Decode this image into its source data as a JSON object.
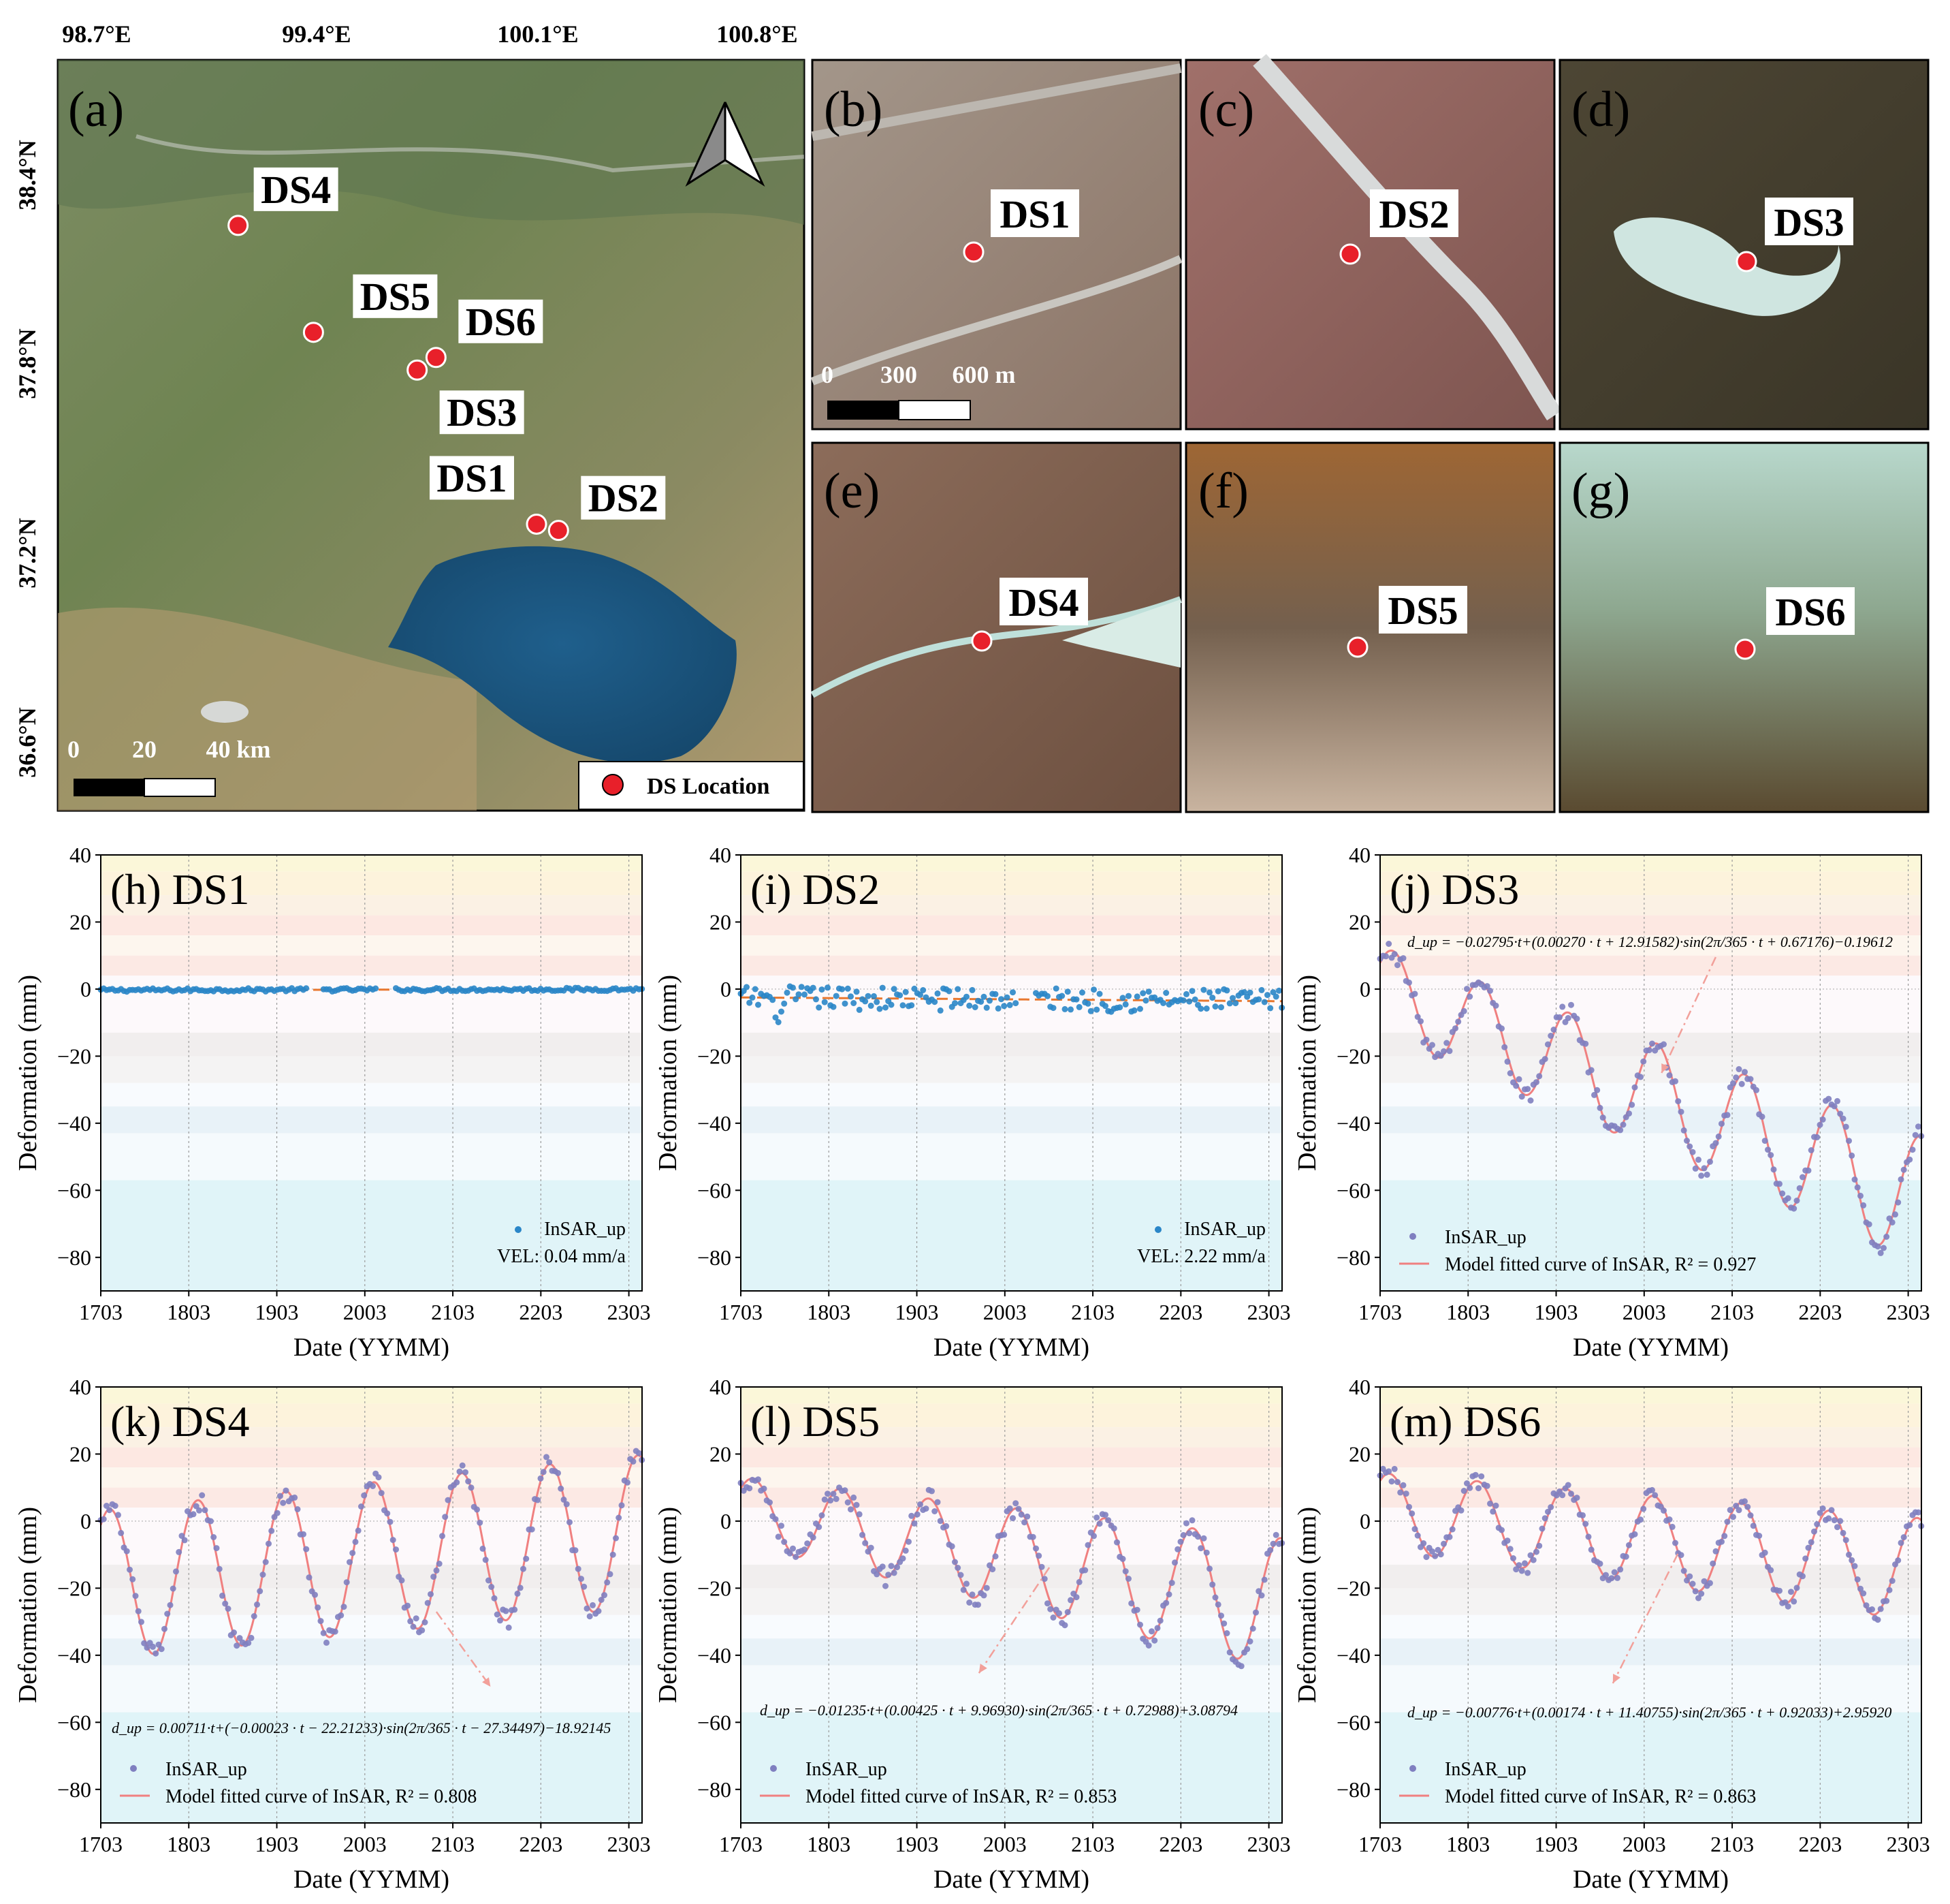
{
  "map": {
    "panel_label": "(a)",
    "lon_ticks": [
      "98.7°E",
      "99.4°E",
      "100.1°E",
      "100.8°E"
    ],
    "lat_ticks": [
      "38.4°N",
      "37.8°N",
      "37.2°N",
      "36.6°N"
    ],
    "scale_labels": [
      "0",
      "20",
      "40 km"
    ],
    "legend_label": "DS Location",
    "marker_color": "#e8202a",
    "sites": [
      {
        "name": "DS4",
        "lon": 99.15,
        "lat": 38.24
      },
      {
        "name": "DS5",
        "lon": 99.39,
        "lat": 37.9
      },
      {
        "name": "DS6",
        "lon": 99.78,
        "lat": 37.82
      },
      {
        "name": "DS3",
        "lon": 99.72,
        "lat": 37.78
      },
      {
        "name": "DS1",
        "lon": 100.1,
        "lat": 37.29
      },
      {
        "name": "DS2",
        "lon": 100.17,
        "lat": 37.27
      }
    ]
  },
  "insets": [
    {
      "label": "(b)",
      "site": "DS1",
      "scale_labels": [
        "0",
        "300",
        "600 m"
      ]
    },
    {
      "label": "(c)",
      "site": "DS2"
    },
    {
      "label": "(d)",
      "site": "DS3"
    },
    {
      "label": "(e)",
      "site": "DS4"
    },
    {
      "label": "(f)",
      "site": "DS5"
    },
    {
      "label": "(g)",
      "site": "DS6"
    }
  ],
  "colors": {
    "insar_blue": "#2a86c8",
    "insar_purple": "#7f7fc0",
    "fit_red": "#f08080",
    "trend_orange": "#e8772e"
  },
  "chart_data": [
    {
      "type": "scatter",
      "title": "(h) DS1",
      "xlabel": "Date (YYMM)",
      "ylabel": "Deformation (mm)",
      "x_ticks": [
        "1703",
        "1803",
        "1903",
        "2003",
        "2103",
        "2203",
        "2303"
      ],
      "y_ticks": [
        40,
        20,
        0,
        -20,
        -40,
        -60,
        -80
      ],
      "ylim": [
        -90,
        40
      ],
      "legend": [
        "InSAR_up",
        "VEL: 0.04 mm/a"
      ],
      "legend_position": "bottom-right",
      "velocity_mm_per_year": 0.04,
      "model": {
        "type": "linear",
        "slope": 0.0001,
        "intercept": -0.3
      },
      "noise": 0.5,
      "gaps": [
        [
          2.35,
          2.5
        ],
        [
          3.15,
          3.35
        ]
      ]
    },
    {
      "type": "scatter",
      "title": "(i) DS2",
      "xlabel": "Date (YYMM)",
      "ylabel": "Deformation (mm)",
      "x_ticks": [
        "1703",
        "1803",
        "1903",
        "2003",
        "2103",
        "2203",
        "2303"
      ],
      "y_ticks": [
        40,
        20,
        0,
        -20,
        -40,
        -60,
        -80
      ],
      "ylim": [
        -90,
        40
      ],
      "legend": [
        "InSAR_up",
        "VEL: 2.22 mm/a"
      ],
      "legend_position": "bottom-right",
      "velocity_mm_per_year": 2.22,
      "model": {
        "type": "linear",
        "slope": -0.0005,
        "intercept": -2.5
      },
      "noise": 3.5,
      "gaps": [
        [
          3.15,
          3.35
        ]
      ]
    },
    {
      "type": "scatter",
      "title": "(j) DS3",
      "xlabel": "Date (YYMM)",
      "ylabel": "Deformation (mm)",
      "x_ticks": [
        "1703",
        "1803",
        "1903",
        "2003",
        "2103",
        "2203",
        "2303"
      ],
      "y_ticks": [
        40,
        20,
        0,
        -20,
        -40,
        -60,
        -80
      ],
      "ylim": [
        -90,
        40
      ],
      "legend": [
        "InSAR_up",
        "Model fitted curve of InSAR, R² = 0.927"
      ],
      "legend_position": "bottom-left",
      "equation": "d_up = −0.02795·t+(0.00270 · t + 12.91582)·sin(2π/365 · t + 0.67176)−0.19612",
      "model": {
        "type": "seasonal",
        "slope": -0.02795,
        "amp_slope": 0.0027,
        "amp": 12.91582,
        "phase": 0.67176,
        "offset": -0.19612
      },
      "noise": 3,
      "gaps": []
    },
    {
      "type": "scatter",
      "title": "(k) DS4",
      "xlabel": "Date (YYMM)",
      "ylabel": "Deformation (mm)",
      "x_ticks": [
        "1703",
        "1803",
        "1903",
        "2003",
        "2103",
        "2203",
        "2303"
      ],
      "y_ticks": [
        40,
        20,
        0,
        -20,
        -40,
        -60,
        -80
      ],
      "ylim": [
        -90,
        40
      ],
      "legend": [
        "InSAR_up",
        "Model fitted curve of InSAR, R² = 0.808"
      ],
      "legend_position": "bottom-left",
      "equation": "d_up = 0.00711·t+(−0.00023 · t − 22.21233)·sin(2π/365 · t − 27.34497)−18.92145",
      "model": {
        "type": "seasonal",
        "slope": 0.00711,
        "amp_slope": -0.00023,
        "amp": -22.21233,
        "phase": -27.34497,
        "offset": -18.92145
      },
      "noise": 3,
      "gaps": []
    },
    {
      "type": "scatter",
      "title": "(l) DS5",
      "xlabel": "Date (YYMM)",
      "ylabel": "Deformation (mm)",
      "x_ticks": [
        "1703",
        "1803",
        "1903",
        "2003",
        "2103",
        "2203",
        "2303"
      ],
      "y_ticks": [
        40,
        20,
        0,
        -20,
        -40,
        -60,
        -80
      ],
      "ylim": [
        -90,
        40
      ],
      "legend": [
        "InSAR_up",
        "Model fitted curve of InSAR, R² = 0.853"
      ],
      "legend_position": "bottom-left",
      "equation": "d_up = −0.01235·t+(0.00425 · t + 9.96930)·sin(2π/365 · t + 0.72988)+3.08794",
      "model": {
        "type": "seasonal",
        "slope": -0.01235,
        "amp_slope": 0.00425,
        "amp": 9.9693,
        "phase": 0.72988,
        "offset": 3.08794
      },
      "noise": 3,
      "gaps": []
    },
    {
      "type": "scatter",
      "title": "(m) DS6",
      "xlabel": "Date (YYMM)",
      "ylabel": "Deformation (mm)",
      "x_ticks": [
        "1703",
        "1803",
        "1903",
        "2003",
        "2103",
        "2203",
        "2303"
      ],
      "y_ticks": [
        40,
        20,
        0,
        -20,
        -40,
        -60,
        -80
      ],
      "ylim": [
        -90,
        40
      ],
      "legend": [
        "InSAR_up",
        "Model fitted curve of InSAR, R² = 0.863"
      ],
      "legend_position": "bottom-left",
      "equation": "d_up = −0.00776·t+(0.00174 · t + 11.40755)·sin(2π/365 · t + 0.92033)+2.95920",
      "model": {
        "type": "seasonal",
        "slope": -0.00776,
        "amp_slope": 0.00174,
        "amp": 11.40755,
        "phase": 0.92033,
        "offset": 2.9592
      },
      "noise": 2.5,
      "gaps": []
    }
  ]
}
